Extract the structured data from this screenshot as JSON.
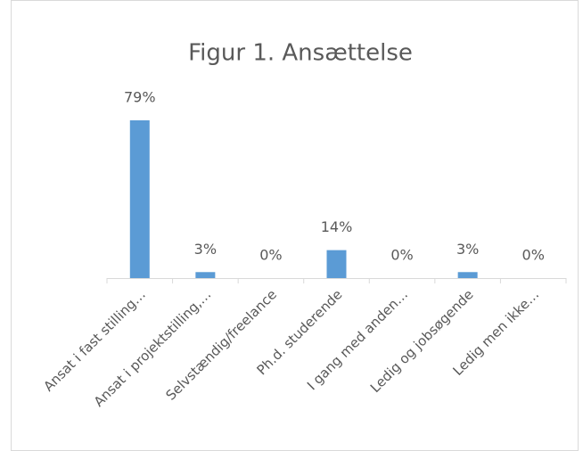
{
  "chart_data": {
    "type": "bar",
    "title": "Figur 1. Ansættelse",
    "categories": [
      "Ansat i fast stilling…",
      "Ansat i projektstilling,…",
      "Selvstændig/freelance",
      "Ph.d. studerende",
      "I gang med anden…",
      "Ledig og jobsøgende",
      "Ledig men ikke…"
    ],
    "values": [
      79,
      3,
      0,
      14,
      0,
      3,
      0
    ],
    "value_labels": [
      "79%",
      "3%",
      "0%",
      "14%",
      "0%",
      "3%",
      "0%"
    ],
    "color": "#5b9bd5"
  }
}
